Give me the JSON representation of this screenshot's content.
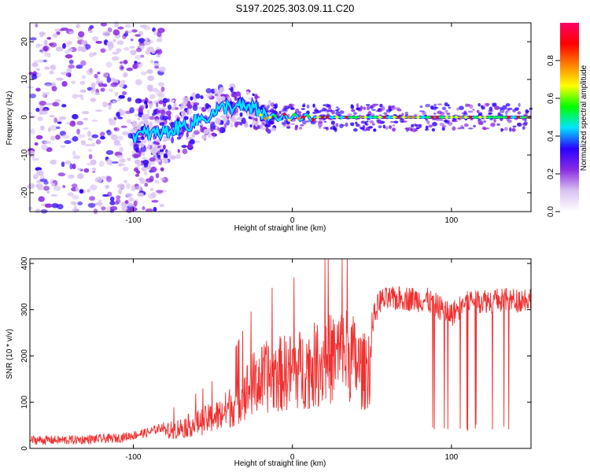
{
  "title": "S197.2025.303.09.11.C20",
  "colors": {
    "snr_line": "#f03030",
    "colormap": [
      "#ffffff",
      "#d9c2f2",
      "#8a2be2",
      "#2a00ff",
      "#00e5ff",
      "#00ff00",
      "#ffff00",
      "#ff8000",
      "#ff0000",
      "#ff0066"
    ]
  },
  "chart_data": [
    {
      "type": "heatmap",
      "name": "spectrogram",
      "xlabel": "Height of straight line (km)",
      "ylabel": "Frequency (Hz)",
      "xlim": [
        -165,
        150
      ],
      "ylim": [
        -25,
        25
      ],
      "xticks": [
        -100,
        0,
        100
      ],
      "xtick_labels": [
        "-100",
        "0",
        "100"
      ],
      "yticks": [
        -20,
        -10,
        0,
        10,
        20
      ],
      "ytick_labels": [
        "-20",
        "-10",
        "0",
        "10",
        "20"
      ],
      "colorbar": {
        "label": "Normalized spectral amplitude",
        "range": [
          0,
          1
        ],
        "ticks": [
          0.0,
          0.2,
          0.4,
          0.6,
          0.8
        ],
        "tick_labels": [
          "0.0",
          "0.2",
          "0.4",
          "0.6",
          "0.8"
        ]
      },
      "description_points": {
        "noise_region_x": [
          -165,
          -100
        ],
        "rising_signal": [
          {
            "x": -100,
            "y": -5
          },
          {
            "x": -80,
            "y": -4
          },
          {
            "x": -60,
            "y": -1
          },
          {
            "x": -40,
            "y": 3
          },
          {
            "x": -25,
            "y": 2
          },
          {
            "x": -15,
            "y": 0
          },
          {
            "x": 0,
            "y": 0
          }
        ],
        "stable_line_x": [
          0,
          150
        ],
        "stable_line_y": 0
      }
    },
    {
      "type": "line",
      "name": "snr",
      "xlabel": "Height of straight line (km)",
      "ylabel": "SNR (10 * v/v)",
      "xlim": [
        -165,
        150
      ],
      "ylim": [
        0,
        410
      ],
      "xticks": [
        -100,
        0,
        100
      ],
      "xtick_labels": [
        "-100",
        "0",
        "100"
      ],
      "yticks": [
        0,
        100,
        200,
        300,
        400
      ],
      "ytick_labels": [
        "0",
        "100",
        "200",
        "300",
        "400"
      ],
      "envelope": [
        {
          "x": -165,
          "y": 18
        },
        {
          "x": -140,
          "y": 18
        },
        {
          "x": -110,
          "y": 22
        },
        {
          "x": -90,
          "y": 35
        },
        {
          "x": -75,
          "y": 55
        },
        {
          "x": -60,
          "y": 75
        },
        {
          "x": -45,
          "y": 100
        },
        {
          "x": -35,
          "y": 140
        },
        {
          "x": -25,
          "y": 190
        },
        {
          "x": -15,
          "y": 215
        },
        {
          "x": -5,
          "y": 225
        },
        {
          "x": 5,
          "y": 235
        },
        {
          "x": 15,
          "y": 250
        },
        {
          "x": 25,
          "y": 270
        },
        {
          "x": 35,
          "y": 285
        },
        {
          "x": 45,
          "y": 225
        },
        {
          "x": 55,
          "y": 320
        },
        {
          "x": 70,
          "y": 325
        },
        {
          "x": 85,
          "y": 320
        },
        {
          "x": 100,
          "y": 290
        },
        {
          "x": 110,
          "y": 320
        },
        {
          "x": 125,
          "y": 320
        },
        {
          "x": 140,
          "y": 320
        },
        {
          "x": 150,
          "y": 325
        }
      ],
      "peak_value": 410
    }
  ]
}
